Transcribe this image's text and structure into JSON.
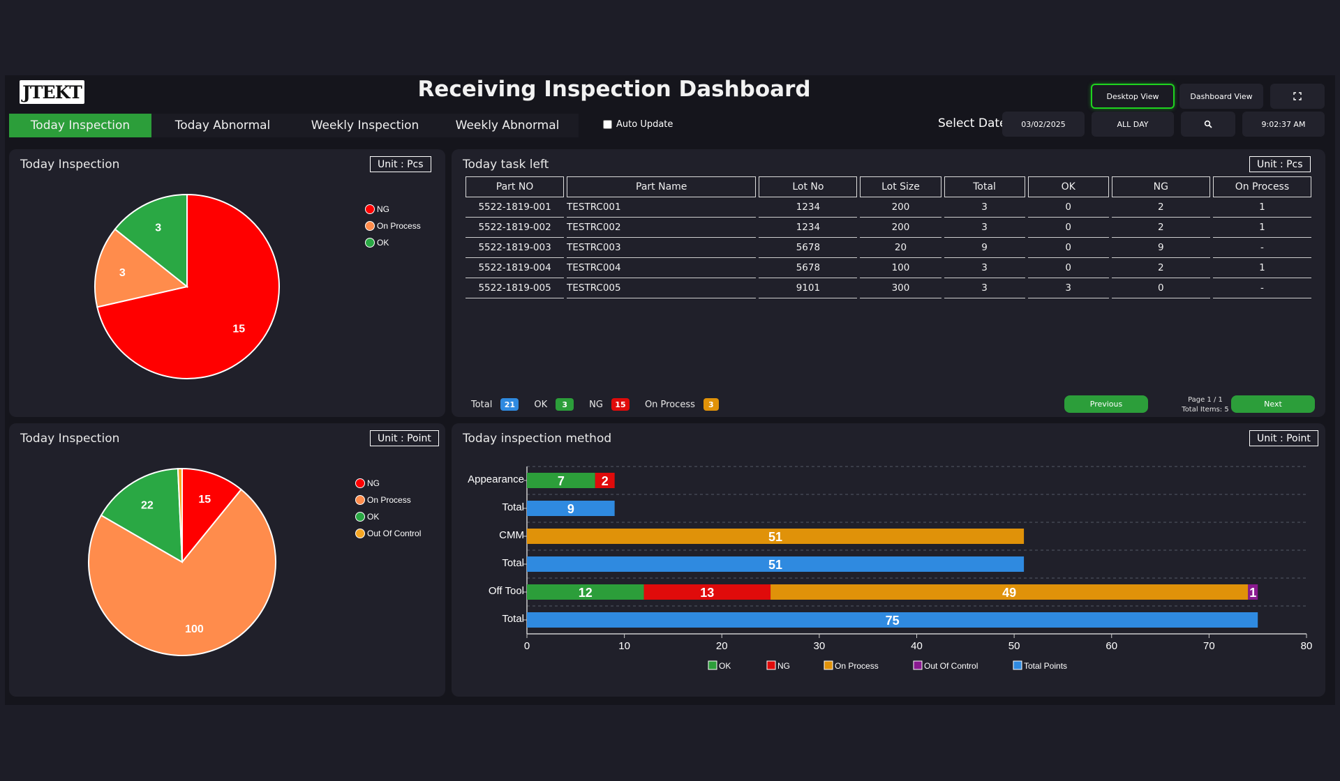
{
  "app": {
    "logo": "JTEKT",
    "title": "Receiving Inspection Dashboard"
  },
  "header": {
    "desktop_view": "Desktop View",
    "dashboard_view": "Dashboard View",
    "fullscreen_icon": "fullscreen-icon",
    "select_date_label": "Select Date",
    "date_value": "03/02/2025",
    "range_value": "ALL DAY",
    "search_icon": "search-icon",
    "time_value": "9:02:37 AM",
    "auto_update": "Auto Update",
    "accent_green": "#2c9e3a"
  },
  "tabs": [
    {
      "label": "Today Inspection"
    },
    {
      "label": "Today Abnormal"
    },
    {
      "label": "Weekly Inspection"
    },
    {
      "label": "Weekly Abnormal"
    }
  ],
  "pie_pcs": {
    "title": "Today Inspection",
    "unit": "Unit : Pcs",
    "legend": [
      "NG",
      "On Process",
      "OK"
    ]
  },
  "pie_point": {
    "title": "Today Inspection",
    "unit": "Unit : Point",
    "legend": [
      "NG",
      "On Process",
      "OK",
      "Out Of Control"
    ]
  },
  "tasks": {
    "title": "Today task left",
    "unit": "Unit : Pcs",
    "columns": [
      "Part NO",
      "Part Name",
      "Lot No",
      "Lot Size",
      "Total",
      "OK",
      "NG",
      "On Process"
    ],
    "rows": [
      [
        "5522-1819-001",
        "TESTRC001",
        "1234",
        "200",
        "3",
        "0",
        "2",
        "1"
      ],
      [
        "5522-1819-002",
        "TESTRC002",
        "1234",
        "200",
        "3",
        "0",
        "2",
        "1"
      ],
      [
        "5522-1819-003",
        "TESTRC003",
        "5678",
        "20",
        "9",
        "0",
        "9",
        "-"
      ],
      [
        "5522-1819-004",
        "TESTRC004",
        "5678",
        "100",
        "3",
        "0",
        "2",
        "1"
      ],
      [
        "5522-1819-005",
        "TESTRC005",
        "9101",
        "300",
        "3",
        "3",
        "0",
        "-"
      ]
    ],
    "summary": {
      "total_label": "Total",
      "total": "21",
      "ok_label": "OK",
      "ok": "3",
      "ng_label": "NG",
      "ng": "15",
      "onprocess_label": "On Process",
      "onprocess": "3"
    },
    "previous": "Previous",
    "next": "Next",
    "page": "Page 1 / 1",
    "total_items": "Total Items: 5"
  },
  "method": {
    "title": "Today inspection method",
    "unit": "Unit : Point"
  },
  "chart_data": [
    {
      "type": "pie",
      "labels": [
        "NG",
        "On Process",
        "OK"
      ],
      "values": [
        15,
        3,
        3
      ],
      "colors": [
        "#ff0000",
        "#ff8c4c",
        "#2aa844"
      ]
    },
    {
      "type": "pie",
      "labels": [
        "NG",
        "On Process",
        "OK",
        "Out Of Control"
      ],
      "values": [
        15,
        100,
        22,
        1
      ],
      "colors": [
        "#ff0000",
        "#ff8c4c",
        "#2aa844",
        "#f5a623"
      ]
    },
    {
      "type": "bar",
      "orientation": "horizontal",
      "stacked": true,
      "categories": [
        "Appearance",
        "Total",
        "CMM",
        "Total",
        "Off Tool",
        "Total"
      ],
      "series": [
        {
          "name": "OK",
          "color": "#2c9e3a",
          "values": [
            7,
            0,
            0,
            0,
            12,
            0
          ]
        },
        {
          "name": "NG",
          "color": "#e00b0b",
          "values": [
            2,
            0,
            0,
            0,
            13,
            0
          ]
        },
        {
          "name": "On Process",
          "color": "#e09209",
          "values": [
            0,
            0,
            51,
            0,
            49,
            0
          ]
        },
        {
          "name": "Out Of Control",
          "color": "#8a1a90",
          "values": [
            0,
            0,
            0,
            0,
            1,
            0
          ]
        },
        {
          "name": "Total Points",
          "color": "#2f8ae0",
          "values": [
            0,
            9,
            0,
            51,
            0,
            75
          ]
        }
      ],
      "xlim": [
        0,
        80
      ],
      "xticks": [
        0,
        10,
        20,
        30,
        40,
        50,
        60,
        70,
        80
      ],
      "legend_position": "bottom",
      "grid": true
    }
  ]
}
